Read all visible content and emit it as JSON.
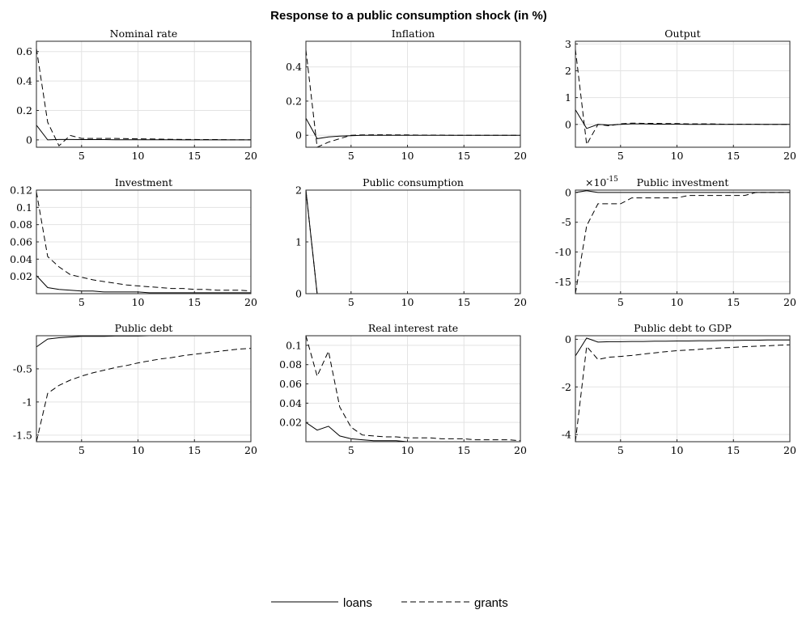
{
  "figure_title": "Response to a public consumption shock (in %)",
  "legend": [
    {
      "label": "loans",
      "style": "solid"
    },
    {
      "label": "grants",
      "style": "dashed"
    }
  ],
  "chart_data": [
    {
      "type": "line",
      "title": "Nominal rate",
      "xlim": [
        1,
        20
      ],
      "ylim": [
        -0.05,
        0.67
      ],
      "xticks": [
        5,
        10,
        15,
        20
      ],
      "yticks": [
        0,
        0.2,
        0.4,
        0.6
      ],
      "ytick_labels": [
        "0",
        "0.2",
        "0.4",
        "0.6"
      ],
      "grid": true,
      "series": [
        {
          "name": "loans",
          "x": [
            1,
            2,
            3,
            4,
            5,
            6,
            7,
            8,
            9,
            10,
            11,
            12,
            13,
            14,
            15,
            16,
            17,
            18,
            19,
            20
          ],
          "y": [
            0.1,
            0.0,
            0.003,
            0.003,
            0.002,
            0.002,
            0.002,
            0.001,
            0.001,
            0.001,
            0.001,
            0.001,
            0.001,
            0.0,
            0.0,
            0.0,
            0.0,
            0.0,
            0.0,
            0.0
          ]
        },
        {
          "name": "grants",
          "x": [
            1,
            2,
            3,
            4,
            5,
            6,
            7,
            8,
            9,
            10,
            11,
            12,
            13,
            14,
            15,
            16,
            17,
            18,
            19,
            20
          ],
          "y": [
            0.62,
            0.12,
            -0.04,
            0.03,
            0.01,
            0.01,
            0.01,
            0.01,
            0.008,
            0.007,
            0.006,
            0.005,
            0.004,
            0.003,
            0.003,
            0.002,
            0.002,
            0.001,
            0.001,
            0.001
          ]
        }
      ]
    },
    {
      "type": "line",
      "title": "Inflation",
      "xlim": [
        1,
        20
      ],
      "ylim": [
        -0.07,
        0.55
      ],
      "xticks": [
        5,
        10,
        15,
        20
      ],
      "yticks": [
        0,
        0.2,
        0.4
      ],
      "ytick_labels": [
        "0",
        "0.2",
        "0.4"
      ],
      "grid": true,
      "series": [
        {
          "name": "loans",
          "x": [
            1,
            2,
            3,
            4,
            5,
            6,
            7,
            8,
            9,
            10,
            11,
            12,
            13,
            14,
            15,
            16,
            17,
            18,
            19,
            20
          ],
          "y": [
            0.1,
            -0.02,
            -0.01,
            -0.005,
            -0.003,
            0.0,
            0.0,
            0.0,
            0.0,
            0.0,
            0.0,
            0.0,
            0.0,
            0.0,
            0.0,
            0.0,
            0.0,
            0.0,
            0.0,
            0.0
          ]
        },
        {
          "name": "grants",
          "x": [
            1,
            2,
            3,
            4,
            5,
            6,
            7,
            8,
            9,
            10,
            11,
            12,
            13,
            14,
            15,
            16,
            17,
            18,
            19,
            20
          ],
          "y": [
            0.5,
            -0.09,
            -0.04,
            -0.02,
            0.0,
            0.002,
            0.003,
            0.003,
            0.002,
            0.002,
            0.001,
            0.001,
            0.001,
            0.0,
            0.0,
            0.0,
            0.0,
            0.0,
            0.0,
            0.0
          ]
        }
      ]
    },
    {
      "type": "line",
      "title": "Output",
      "xlim": [
        1,
        20
      ],
      "ylim": [
        -0.85,
        3.1
      ],
      "xticks": [
        5,
        10,
        15,
        20
      ],
      "yticks": [
        0,
        1,
        2,
        3
      ],
      "ytick_labels": [
        "0",
        "1",
        "2",
        "3"
      ],
      "grid": true,
      "series": [
        {
          "name": "loans",
          "x": [
            1,
            2,
            3,
            4,
            5,
            6,
            7,
            8,
            9,
            10,
            11,
            12,
            13,
            14,
            15,
            16,
            17,
            18,
            19,
            20
          ],
          "y": [
            0.55,
            -0.15,
            0.0,
            -0.02,
            0.0,
            0.02,
            0.02,
            0.01,
            0.01,
            0.01,
            0.0,
            0.0,
            0.0,
            0.0,
            0.0,
            0.0,
            0.0,
            0.0,
            0.0,
            0.0
          ]
        },
        {
          "name": "grants",
          "x": [
            1,
            2,
            3,
            4,
            5,
            6,
            7,
            8,
            9,
            10,
            11,
            12,
            13,
            14,
            15,
            16,
            17,
            18,
            19,
            20
          ],
          "y": [
            2.8,
            -0.75,
            0.0,
            -0.05,
            0.02,
            0.05,
            0.04,
            0.04,
            0.03,
            0.03,
            0.02,
            0.02,
            0.02,
            0.01,
            0.01,
            0.01,
            0.01,
            0.0,
            0.0,
            0.0
          ]
        }
      ]
    },
    {
      "type": "line",
      "title": "Investment",
      "xlim": [
        1,
        20
      ],
      "ylim": [
        0.0,
        0.12
      ],
      "xticks": [
        5,
        10,
        15,
        20
      ],
      "yticks": [
        0.02,
        0.04,
        0.06,
        0.08,
        0.1,
        0.12
      ],
      "ytick_labels": [
        "0.02",
        "0.04",
        "0.06",
        "0.08",
        "0.1",
        "0.12"
      ],
      "grid": true,
      "series": [
        {
          "name": "loans",
          "x": [
            1,
            2,
            3,
            4,
            5,
            6,
            7,
            8,
            9,
            10,
            11,
            12,
            13,
            14,
            15,
            16,
            17,
            18,
            19,
            20
          ],
          "y": [
            0.021,
            0.007,
            0.005,
            0.004,
            0.003,
            0.003,
            0.002,
            0.002,
            0.002,
            0.002,
            0.001,
            0.001,
            0.001,
            0.001,
            0.001,
            0.001,
            0.001,
            0.001,
            0.001,
            0.001
          ]
        },
        {
          "name": "grants",
          "x": [
            1,
            2,
            3,
            4,
            5,
            6,
            7,
            8,
            9,
            10,
            11,
            12,
            13,
            14,
            15,
            16,
            17,
            18,
            19,
            20
          ],
          "y": [
            0.118,
            0.043,
            0.031,
            0.022,
            0.019,
            0.016,
            0.014,
            0.012,
            0.01,
            0.009,
            0.008,
            0.007,
            0.006,
            0.006,
            0.005,
            0.005,
            0.004,
            0.004,
            0.004,
            0.003
          ]
        }
      ]
    },
    {
      "type": "line",
      "title": "Public consumption",
      "xlim": [
        1,
        20
      ],
      "ylim": [
        0,
        2
      ],
      "xticks": [
        5,
        10,
        15,
        20
      ],
      "yticks": [
        0,
        1,
        2
      ],
      "ytick_labels": [
        "0",
        "1",
        "2"
      ],
      "grid": true,
      "series": [
        {
          "name": "loans",
          "x": [
            1,
            2,
            3,
            4,
            5,
            6,
            7,
            8,
            9,
            10,
            11,
            12,
            13,
            14,
            15,
            16,
            17,
            18,
            19,
            20
          ],
          "y": [
            2,
            0,
            0,
            0,
            0,
            0,
            0,
            0,
            0,
            0,
            0,
            0,
            0,
            0,
            0,
            0,
            0,
            0,
            0,
            0
          ]
        },
        {
          "name": "grants",
          "x": [
            1,
            2,
            3,
            4,
            5,
            6,
            7,
            8,
            9,
            10,
            11,
            12,
            13,
            14,
            15,
            16,
            17,
            18,
            19,
            20
          ],
          "y": [
            2,
            0,
            0,
            0,
            0,
            0,
            0,
            0,
            0,
            0,
            0,
            0,
            0,
            0,
            0,
            0,
            0,
            0,
            0,
            0
          ]
        }
      ]
    },
    {
      "type": "line",
      "title": "Public investment",
      "exponent_label": "×10",
      "exponent_value": "-15",
      "xlim": [
        1,
        20
      ],
      "ylim": [
        -17,
        0.4
      ],
      "xticks": [
        5,
        10,
        15,
        20
      ],
      "yticks": [
        -15,
        -10,
        -5,
        0
      ],
      "ytick_labels": [
        "-15",
        "-10",
        "-5",
        "0"
      ],
      "grid": true,
      "series": [
        {
          "name": "loans",
          "x": [
            1,
            2,
            3,
            4,
            5,
            6,
            7,
            8,
            9,
            10,
            11,
            12,
            13,
            14,
            15,
            16,
            17,
            18,
            19,
            20
          ],
          "y": [
            0,
            0.3,
            0,
            0,
            0,
            0,
            0,
            0,
            0,
            0,
            0,
            0,
            0,
            0,
            0,
            0,
            0,
            0,
            0,
            0
          ]
        },
        {
          "name": "grants",
          "x": [
            1,
            2,
            3,
            4,
            5,
            6,
            7,
            8,
            9,
            10,
            11,
            12,
            13,
            14,
            15,
            16,
            17,
            18,
            19,
            20
          ],
          "y": [
            -17,
            -5.6,
            -1.9,
            -1.9,
            -1.9,
            -0.9,
            -0.9,
            -0.9,
            -0.9,
            -0.9,
            -0.5,
            -0.5,
            -0.5,
            -0.5,
            -0.5,
            -0.5,
            0,
            0,
            0,
            0
          ]
        }
      ]
    },
    {
      "type": "line",
      "title": "Public debt",
      "xlim": [
        1,
        20
      ],
      "ylim": [
        -1.6,
        0.0
      ],
      "xticks": [
        5,
        10,
        15,
        20
      ],
      "yticks": [
        -1.5,
        -1,
        -0.5
      ],
      "ytick_labels": [
        "-1.5",
        "-1",
        "-0.5"
      ],
      "grid": true,
      "series": [
        {
          "name": "loans",
          "x": [
            1,
            2,
            3,
            4,
            5,
            6,
            7,
            8,
            9,
            10,
            11,
            12,
            13,
            14,
            15,
            16,
            17,
            18,
            19,
            20
          ],
          "y": [
            -0.17,
            -0.05,
            -0.03,
            -0.02,
            -0.01,
            -0.01,
            -0.01,
            -0.005,
            -0.005,
            -0.005,
            0,
            0,
            0,
            0,
            0,
            0,
            0,
            0,
            0,
            0
          ]
        },
        {
          "name": "grants",
          "x": [
            1,
            2,
            3,
            4,
            5,
            6,
            7,
            8,
            9,
            10,
            11,
            12,
            13,
            14,
            15,
            16,
            17,
            18,
            19,
            20
          ],
          "y": [
            -1.6,
            -0.87,
            -0.75,
            -0.67,
            -0.61,
            -0.56,
            -0.52,
            -0.48,
            -0.45,
            -0.41,
            -0.38,
            -0.35,
            -0.33,
            -0.3,
            -0.28,
            -0.26,
            -0.24,
            -0.22,
            -0.2,
            -0.19
          ]
        }
      ]
    },
    {
      "type": "line",
      "title": "Real interest rate",
      "xlim": [
        1,
        20
      ],
      "ylim": [
        0.0,
        0.11
      ],
      "xticks": [
        5,
        10,
        15,
        20
      ],
      "yticks": [
        0.02,
        0.04,
        0.06,
        0.08,
        0.1
      ],
      "ytick_labels": [
        "0.02",
        "0.04",
        "0.06",
        "0.08",
        "0.1"
      ],
      "grid": true,
      "series": [
        {
          "name": "loans",
          "x": [
            1,
            2,
            3,
            4,
            5,
            6,
            7,
            8,
            9,
            10,
            11,
            12,
            13,
            14,
            15,
            16,
            17,
            18,
            19,
            20
          ],
          "y": [
            0.02,
            0.012,
            0.016,
            0.006,
            0.003,
            0.002,
            0.001,
            0.001,
            0.001,
            0.0,
            0.0,
            0.0,
            0.0,
            0.0,
            0.0,
            0.0,
            0.0,
            0.0,
            0.0,
            0.0
          ]
        },
        {
          "name": "grants",
          "x": [
            1,
            2,
            3,
            4,
            5,
            6,
            7,
            8,
            9,
            10,
            11,
            12,
            13,
            14,
            15,
            16,
            17,
            18,
            19,
            20
          ],
          "y": [
            0.11,
            0.068,
            0.094,
            0.036,
            0.015,
            0.007,
            0.006,
            0.005,
            0.005,
            0.004,
            0.004,
            0.004,
            0.003,
            0.003,
            0.003,
            0.002,
            0.002,
            0.002,
            0.002,
            0.001
          ]
        }
      ]
    },
    {
      "type": "line",
      "title": "Public debt to GDP",
      "xlim": [
        1,
        20
      ],
      "ylim": [
        -4.3,
        0.15
      ],
      "xticks": [
        5,
        10,
        15,
        20
      ],
      "yticks": [
        -4,
        -2,
        0
      ],
      "ytick_labels": [
        "-4",
        "-2",
        "0"
      ],
      "grid": true,
      "series": [
        {
          "name": "loans",
          "x": [
            1,
            2,
            3,
            4,
            5,
            6,
            7,
            8,
            9,
            10,
            11,
            12,
            13,
            14,
            15,
            16,
            17,
            18,
            19,
            20
          ],
          "y": [
            -0.7,
            0.05,
            -0.12,
            -0.1,
            -0.1,
            -0.09,
            -0.09,
            -0.08,
            -0.08,
            -0.07,
            -0.07,
            -0.06,
            -0.06,
            -0.05,
            -0.05,
            -0.04,
            -0.04,
            -0.03,
            -0.03,
            -0.03
          ]
        },
        {
          "name": "grants",
          "x": [
            1,
            2,
            3,
            4,
            5,
            6,
            7,
            8,
            9,
            10,
            11,
            12,
            13,
            14,
            15,
            16,
            17,
            18,
            19,
            20
          ],
          "y": [
            -4.3,
            -0.3,
            -0.85,
            -0.75,
            -0.72,
            -0.68,
            -0.62,
            -0.57,
            -0.52,
            -0.48,
            -0.45,
            -0.42,
            -0.39,
            -0.36,
            -0.34,
            -0.31,
            -0.29,
            -0.27,
            -0.25,
            -0.23
          ]
        }
      ]
    }
  ]
}
